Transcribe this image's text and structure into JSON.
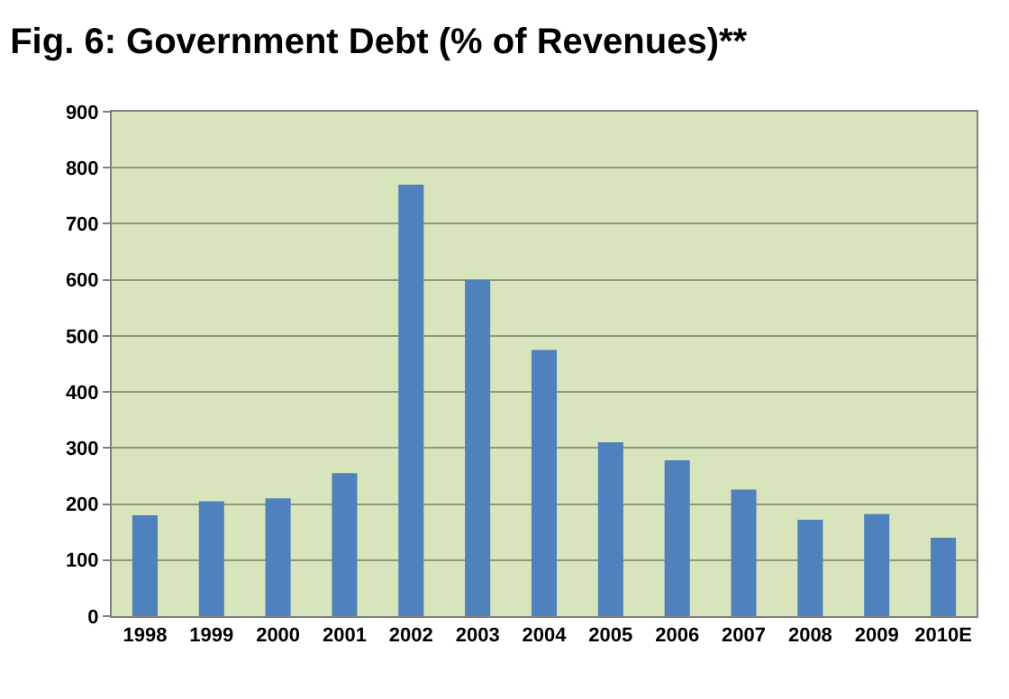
{
  "chart_data": {
    "type": "bar",
    "title": "Fig. 6: Government Debt (% of Revenues)**",
    "categories": [
      "1998",
      "1999",
      "2000",
      "2001",
      "2002",
      "2003",
      "2004",
      "2005",
      "2006",
      "2007",
      "2008",
      "2009",
      "2010E"
    ],
    "values": [
      180,
      205,
      210,
      255,
      770,
      600,
      475,
      310,
      278,
      226,
      172,
      182,
      140
    ],
    "color": "#4f81bd",
    "ylim": [
      0,
      900
    ],
    "yticks": [
      0,
      100,
      200,
      300,
      400,
      500,
      600,
      700,
      800,
      900
    ],
    "grid": "y"
  }
}
